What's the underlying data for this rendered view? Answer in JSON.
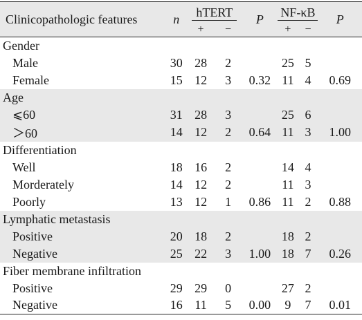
{
  "header": {
    "feature_label": "Clinicopathologic features",
    "n_label": "n",
    "htert_label": "hTERT",
    "nfkb_label": "NF-κB",
    "p_label": "P",
    "plus": "+",
    "minus": "−"
  },
  "groups": [
    {
      "title": "Gender",
      "rows": [
        {
          "label": "Male",
          "n": "30",
          "h_pos": "28",
          "h_neg": "2",
          "h_p": "",
          "nf_pos": "25",
          "nf_neg": "5",
          "nf_p": ""
        },
        {
          "label": "Female",
          "n": "15",
          "h_pos": "12",
          "h_neg": "3",
          "h_p": "0.32",
          "nf_pos": "11",
          "nf_neg": "4",
          "nf_p": "0.69"
        }
      ]
    },
    {
      "title": "Age",
      "rows": [
        {
          "label": "⩽60",
          "n": "31",
          "h_pos": "28",
          "h_neg": "3",
          "h_p": "",
          "nf_pos": "25",
          "nf_neg": "6",
          "nf_p": ""
        },
        {
          "label": "＞60",
          "n": "14",
          "h_pos": "12",
          "h_neg": "2",
          "h_p": "0.64",
          "nf_pos": "11",
          "nf_neg": "3",
          "nf_p": "1.00"
        }
      ]
    },
    {
      "title": "Differentiation",
      "rows": [
        {
          "label": "Well",
          "n": "18",
          "h_pos": "16",
          "h_neg": "2",
          "h_p": "",
          "nf_pos": "14",
          "nf_neg": "4",
          "nf_p": ""
        },
        {
          "label": "Morderately",
          "n": "14",
          "h_pos": "12",
          "h_neg": "2",
          "h_p": "",
          "nf_pos": "11",
          "nf_neg": "3",
          "nf_p": ""
        },
        {
          "label": "Poorly",
          "n": "13",
          "h_pos": "12",
          "h_neg": "1",
          "h_p": "0.86",
          "nf_pos": "11",
          "nf_neg": "2",
          "nf_p": "0.88"
        }
      ]
    },
    {
      "title": "Lymphatic metastasis",
      "rows": [
        {
          "label": "Positive",
          "n": "20",
          "h_pos": "18",
          "h_neg": "2",
          "h_p": "",
          "nf_pos": "18",
          "nf_neg": "2",
          "nf_p": ""
        },
        {
          "label": "Negative",
          "n": "25",
          "h_pos": "22",
          "h_neg": "3",
          "h_p": "1.00",
          "nf_pos": "18",
          "nf_neg": "7",
          "nf_p": "0.26"
        }
      ]
    },
    {
      "title": "Fiber membrane infiltration",
      "rows": [
        {
          "label": "Positive",
          "n": "29",
          "h_pos": "29",
          "h_neg": "0",
          "h_p": "",
          "nf_pos": "27",
          "nf_neg": "2",
          "nf_p": ""
        },
        {
          "label": "Negative",
          "n": "16",
          "h_pos": "11",
          "h_neg": "5",
          "h_p": "0.00",
          "nf_pos": "9",
          "nf_neg": "7",
          "nf_p": "0.01"
        }
      ]
    }
  ],
  "shaded_groups": [
    1,
    3
  ],
  "colors": {
    "shade": "#e8e8e8",
    "rule": "#222222",
    "text": "#1a1a1a"
  }
}
